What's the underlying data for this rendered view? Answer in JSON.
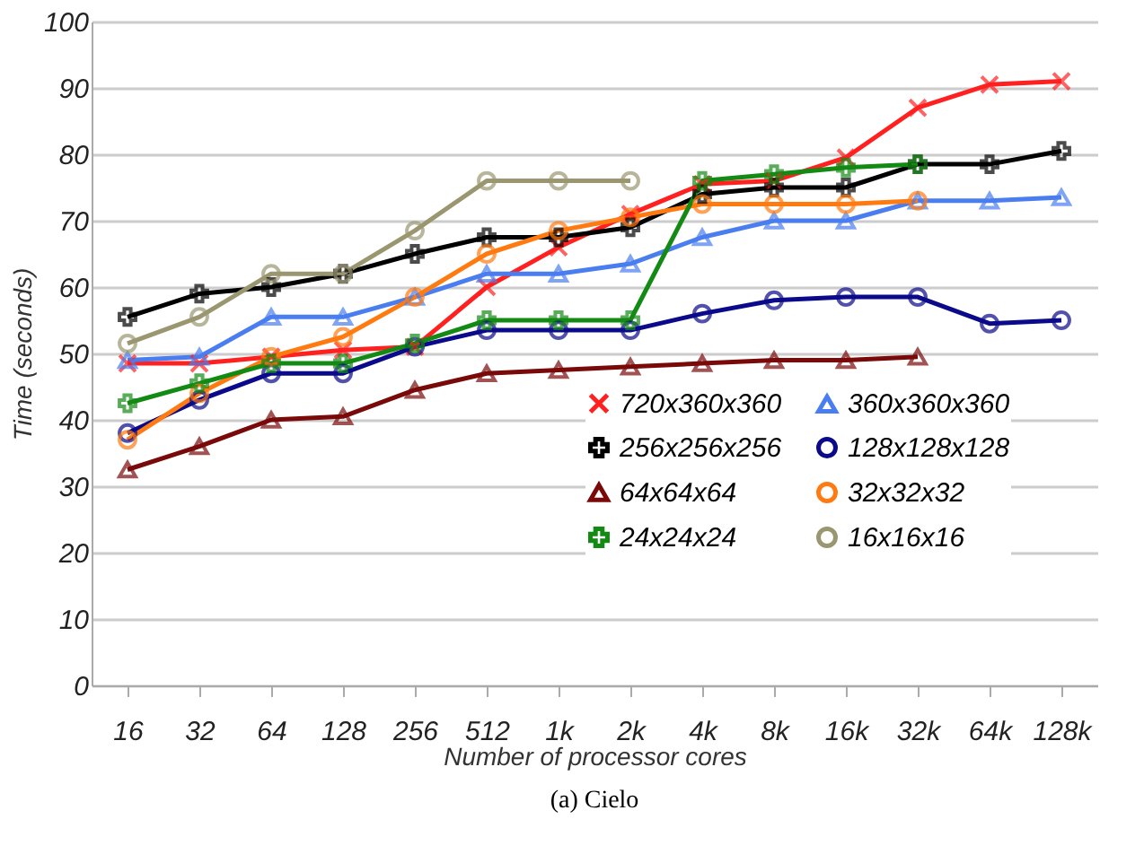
{
  "chart_data": {
    "type": "line",
    "xlabel": "Number of processor cores",
    "ylabel": "Time (seconds)",
    "categories": [
      "16",
      "32",
      "64",
      "128",
      "256",
      "512",
      "1k",
      "2k",
      "4k",
      "8k",
      "16k",
      "32k",
      "64k",
      "128k"
    ],
    "ylim": [
      0,
      100
    ],
    "yticks": [
      0,
      10,
      20,
      30,
      40,
      50,
      60,
      70,
      80,
      90,
      100
    ],
    "grid": "y",
    "legend": "right",
    "annotations": [
      "(a)  Cielo"
    ],
    "series": [
      {
        "name": "720x360x360",
        "color": "#ff2020",
        "marker": "x",
        "values": [
          48.5,
          48.5,
          49.5,
          50.5,
          51,
          60,
          66,
          71,
          75.5,
          76,
          79.5,
          87,
          90.5,
          91
        ]
      },
      {
        "name": "360x360x360",
        "color": "#4a7ef0",
        "marker": "triangle",
        "values": [
          49,
          49.5,
          55.5,
          55.5,
          58.5,
          62,
          62,
          63.5,
          67.5,
          70,
          70,
          73,
          73,
          73.5
        ]
      },
      {
        "name": "256x256x256",
        "color": "#000000",
        "marker": "cross",
        "values": [
          55.5,
          59,
          60,
          62,
          65,
          67.5,
          67.5,
          69,
          74,
          75,
          75,
          78.5,
          78.5,
          80.5
        ]
      },
      {
        "name": "128x128x128",
        "color": "#0a0a8a",
        "marker": "circle",
        "values": [
          38,
          43,
          47,
          47,
          51,
          53.5,
          53.5,
          53.5,
          56,
          58,
          58.5,
          58.5,
          54.5,
          55
        ]
      },
      {
        "name": "64x64x64",
        "color": "#7a0a0a",
        "marker": "triangle",
        "values": [
          32.5,
          36,
          40,
          40.5,
          44.5,
          47,
          47.5,
          48,
          48.5,
          49,
          49,
          49.5,
          null,
          null
        ]
      },
      {
        "name": "32x32x32",
        "color": "#ff7a10",
        "marker": "circle",
        "values": [
          37,
          44,
          49.5,
          52.5,
          58.5,
          65,
          68.5,
          70.5,
          72.5,
          72.5,
          72.5,
          73,
          null,
          null
        ]
      },
      {
        "name": "24x24x24",
        "color": "#138a13",
        "marker": "cross",
        "values": [
          42.5,
          45.5,
          48.5,
          48.5,
          51.5,
          55,
          55,
          55,
          76,
          77,
          78,
          78.5,
          null,
          null
        ]
      },
      {
        "name": "16x16x16",
        "color": "#9a9670",
        "marker": "circle",
        "values": [
          51.5,
          55.5,
          62,
          62,
          68.5,
          76,
          76,
          76,
          null,
          null,
          null,
          null,
          null,
          null
        ]
      }
    ]
  }
}
